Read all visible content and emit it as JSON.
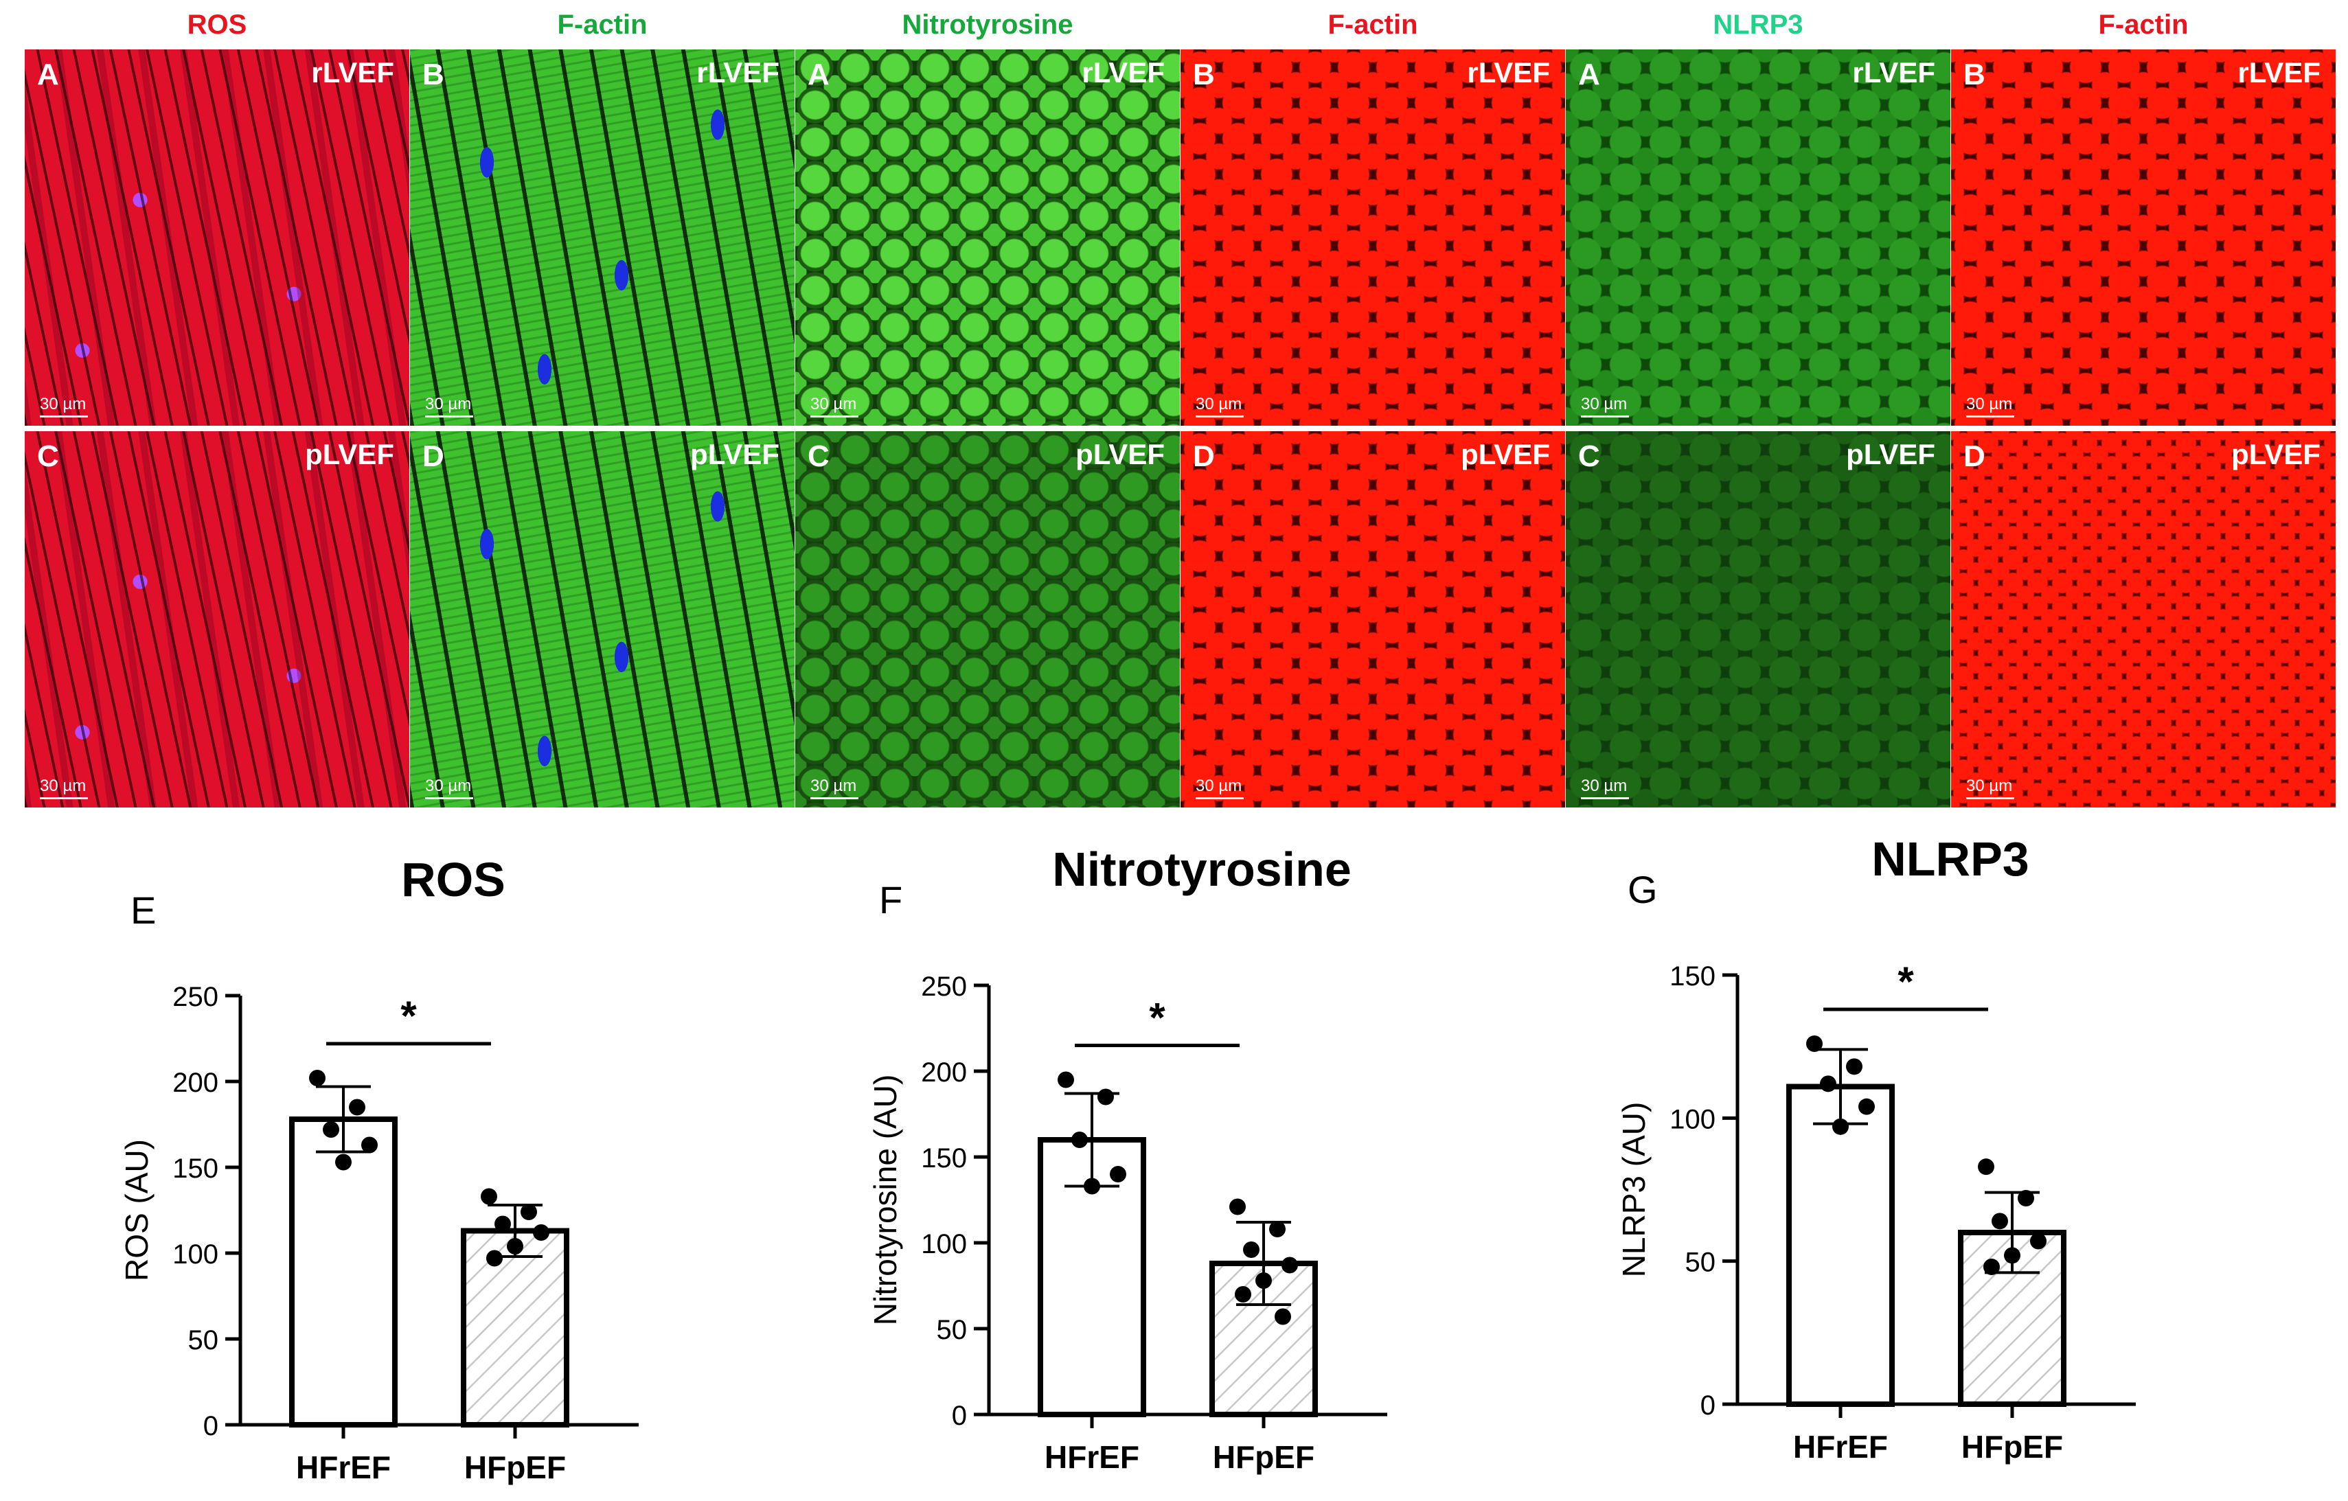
{
  "columns": [
    {
      "title": "ROS",
      "color": "#e8151f"
    },
    {
      "title": "F-actin",
      "color": "#16a83a"
    },
    {
      "title": "Nitrotyrosine",
      "color": "#16a83a"
    },
    {
      "title": "F-actin",
      "color": "#e8151f"
    },
    {
      "title": "NLRP3",
      "color": "#20d28a"
    },
    {
      "title": "F-actin",
      "color": "#e8151f"
    }
  ],
  "tiles": {
    "top": [
      {
        "letter": "A",
        "condition": "rLVEF",
        "scale": "30 µm"
      },
      {
        "letter": "B",
        "condition": "rLVEF",
        "scale": "30 µm"
      },
      {
        "letter": "A",
        "condition": "rLVEF",
        "scale": "30 µm"
      },
      {
        "letter": "B",
        "condition": "rLVEF",
        "scale": "30 µm"
      },
      {
        "letter": "A",
        "condition": "rLVEF",
        "scale": "30 µm"
      },
      {
        "letter": "B",
        "condition": "rLVEF",
        "scale": "30 µm"
      }
    ],
    "bottom": [
      {
        "letter": "C",
        "condition": "pLVEF",
        "scale": "30 µm"
      },
      {
        "letter": "D",
        "condition": "pLVEF",
        "scale": "30 µm"
      },
      {
        "letter": "C",
        "condition": "pLVEF",
        "scale": "30 µm"
      },
      {
        "letter": "D",
        "condition": "pLVEF",
        "scale": "30 µm"
      },
      {
        "letter": "C",
        "condition": "pLVEF",
        "scale": "30 µm"
      },
      {
        "letter": "D",
        "condition": "pLVEF",
        "scale": "30 µm"
      }
    ]
  },
  "chart_data": [
    {
      "type": "bar",
      "panel_letter": "E",
      "title": "ROS",
      "ylabel": "ROS (AU)",
      "categories": [
        "HFrEF",
        "HFpEF"
      ],
      "values": [
        178,
        113
      ],
      "sd": [
        19,
        15
      ],
      "points": [
        [
          202,
          185,
          172,
          163,
          153
        ],
        [
          133,
          124,
          117,
          112,
          104,
          97
        ]
      ],
      "ylim": [
        0,
        250
      ],
      "yticks": [
        0,
        50,
        100,
        150,
        200,
        250
      ],
      "significance": "*"
    },
    {
      "type": "bar",
      "panel_letter": "F",
      "title": "Nitrotyrosine",
      "ylabel": "Nitrotyrosine (AU)",
      "categories": [
        "HFrEF",
        "HFpEF"
      ],
      "values": [
        160,
        88
      ],
      "sd": [
        27,
        24
      ],
      "points": [
        [
          195,
          185,
          160,
          140,
          133
        ],
        [
          121,
          108,
          96,
          87,
          78,
          70,
          57
        ]
      ],
      "ylim": [
        0,
        250
      ],
      "yticks": [
        0,
        50,
        100,
        150,
        200,
        250
      ],
      "significance": "*"
    },
    {
      "type": "bar",
      "panel_letter": "G",
      "title": "NLRP3",
      "ylabel": "NLRP3 (AU)",
      "categories": [
        "HFrEF",
        "HFpEF"
      ],
      "values": [
        111,
        60
      ],
      "sd": [
        13,
        14
      ],
      "points": [
        [
          126,
          118,
          112,
          104,
          97
        ],
        [
          83,
          72,
          64,
          57,
          52,
          48
        ]
      ],
      "ylim": [
        0,
        150
      ],
      "yticks": [
        0,
        50,
        100,
        150
      ],
      "significance": "*"
    }
  ]
}
